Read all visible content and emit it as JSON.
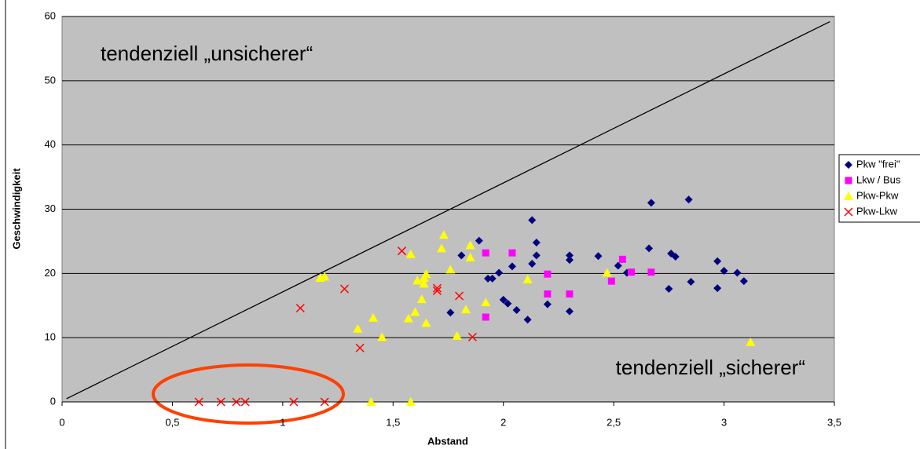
{
  "chart_data": {
    "type": "scatter",
    "xlabel": "Abstand",
    "ylabel": "Geschwindigkeit",
    "annotations": [
      "tendenziell „unsicherer“",
      "tendenziell „sicherer“"
    ],
    "xlim": [
      0,
      3.5
    ],
    "ylim": [
      0,
      60
    ],
    "xticks": [
      0,
      {
        "value": 0.5,
        "label": "0,5"
      },
      1,
      {
        "value": 1.5,
        "label": "1,5"
      },
      2,
      {
        "value": 2.5,
        "label": "2,5"
      },
      3,
      {
        "value": 3.5,
        "label": "3,5"
      }
    ],
    "yticks": [
      0,
      10,
      20,
      30,
      40,
      50,
      60
    ],
    "grid": true,
    "legend": "right",
    "reference_line": {
      "x": [
        0.02,
        3.48
      ],
      "y": [
        0.5,
        59.2
      ],
      "color": "#000000"
    },
    "series": [
      {
        "name": "Pkw \"frei\"",
        "color": "#000080",
        "marker": "diamond",
        "x": [
          1.89,
          1.81,
          1.93,
          1.95,
          1.98,
          2.0,
          2.02,
          2.04,
          2.06,
          2.11,
          2.13,
          2.13,
          2.15,
          2.15,
          2.2,
          2.3,
          2.3,
          2.3,
          2.43,
          2.52,
          2.56,
          2.66,
          2.67,
          2.75,
          2.76,
          2.78,
          2.84,
          2.85,
          2.97,
          2.97,
          3.0,
          3.06,
          3.09,
          1.76
        ],
        "values": [
          25.1,
          22.8,
          19.2,
          19.2,
          20.1,
          15.9,
          15.3,
          21.1,
          14.3,
          12.8,
          21.5,
          28.3,
          24.8,
          22.8,
          15.2,
          22.8,
          22.1,
          14.1,
          22.7,
          21.2,
          20.1,
          23.9,
          31.0,
          17.6,
          23.1,
          22.6,
          31.5,
          18.7,
          21.9,
          17.7,
          20.4,
          20.1,
          18.8,
          13.9
        ]
      },
      {
        "name": "Lkw / Bus",
        "color": "#ff00ff",
        "marker": "square",
        "x": [
          1.92,
          1.92,
          2.04,
          2.2,
          2.2,
          2.3,
          2.49,
          2.54,
          2.58,
          2.67
        ],
        "values": [
          23.2,
          13.2,
          23.2,
          19.9,
          16.8,
          16.8,
          18.8,
          22.2,
          20.2,
          20.2
        ]
      },
      {
        "name": "Pkw-Pkw",
        "color": "#ffff00",
        "marker": "triangle",
        "x": [
          1.17,
          1.19,
          1.34,
          1.41,
          1.45,
          1.57,
          1.58,
          1.6,
          1.61,
          1.63,
          1.64,
          1.64,
          1.65,
          1.65,
          1.72,
          1.73,
          1.76,
          1.79,
          1.83,
          1.85,
          1.85,
          1.92,
          2.11,
          2.47,
          3.12,
          1.4,
          1.58
        ],
        "values": [
          19.3,
          19.5,
          11.4,
          13.1,
          10.1,
          13.0,
          23.0,
          14.0,
          18.9,
          16.0,
          18.4,
          19.3,
          19.9,
          12.3,
          23.9,
          26.0,
          20.6,
          10.3,
          14.4,
          22.5,
          24.4,
          15.5,
          19.1,
          20.1,
          9.3,
          0,
          0
        ]
      },
      {
        "name": "Pkw-Lkw",
        "color": "#ff0000",
        "marker": "x",
        "x": [
          0.62,
          0.72,
          0.79,
          0.83,
          1.05,
          1.19,
          1.08,
          1.28,
          1.35,
          1.54,
          1.7,
          1.7,
          1.8,
          1.86
        ],
        "values": [
          0,
          0,
          0,
          0,
          0,
          0,
          14.6,
          17.6,
          8.4,
          23.5,
          17.3,
          17.7,
          16.5,
          10.1
        ]
      }
    ]
  }
}
